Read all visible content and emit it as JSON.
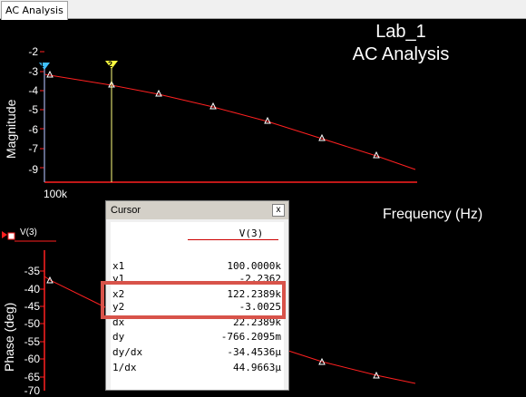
{
  "tab": {
    "label": "AC Analysis"
  },
  "title": {
    "line1": "Lab_1",
    "line2": "AC Analysis"
  },
  "magnitude_plot": {
    "ylabel": "Magnitude",
    "yticks": [
      "-2",
      "-3",
      "-4",
      "-5",
      "-6",
      "-7",
      "-8",
      "-9"
    ],
    "xtick": "100k"
  },
  "xlabel": "Frequency (Hz)",
  "phase_plot": {
    "ylabel": "Phase (deg)",
    "yticks": [
      "-35",
      "-40",
      "-45",
      "-50",
      "-55",
      "-60",
      "-65",
      "-70"
    ],
    "legend": "V(3)"
  },
  "cursors": {
    "c1": "1",
    "c2": "2"
  },
  "cursor_window": {
    "title": "Cursor",
    "close": "x",
    "column": "V(3)",
    "rows": [
      {
        "key": "x1",
        "value": "100.0000k"
      },
      {
        "key": "y1",
        "value": "-2.2362"
      },
      {
        "key": "x2",
        "value": "122.2389k"
      },
      {
        "key": "y2",
        "value": "-3.0025"
      },
      {
        "key": "dx",
        "value": "22.2389k"
      },
      {
        "key": "dy",
        "value": "-766.2095m"
      },
      {
        "key": "dy/dx",
        "value": "-34.4536µ"
      },
      {
        "key": "1/dx",
        "value": "44.9663µ"
      }
    ]
  },
  "colors": {
    "trace": "#ff2020",
    "axis": "#ff2020",
    "cursor": "#ffff80",
    "highlight": "#d8534a"
  }
}
